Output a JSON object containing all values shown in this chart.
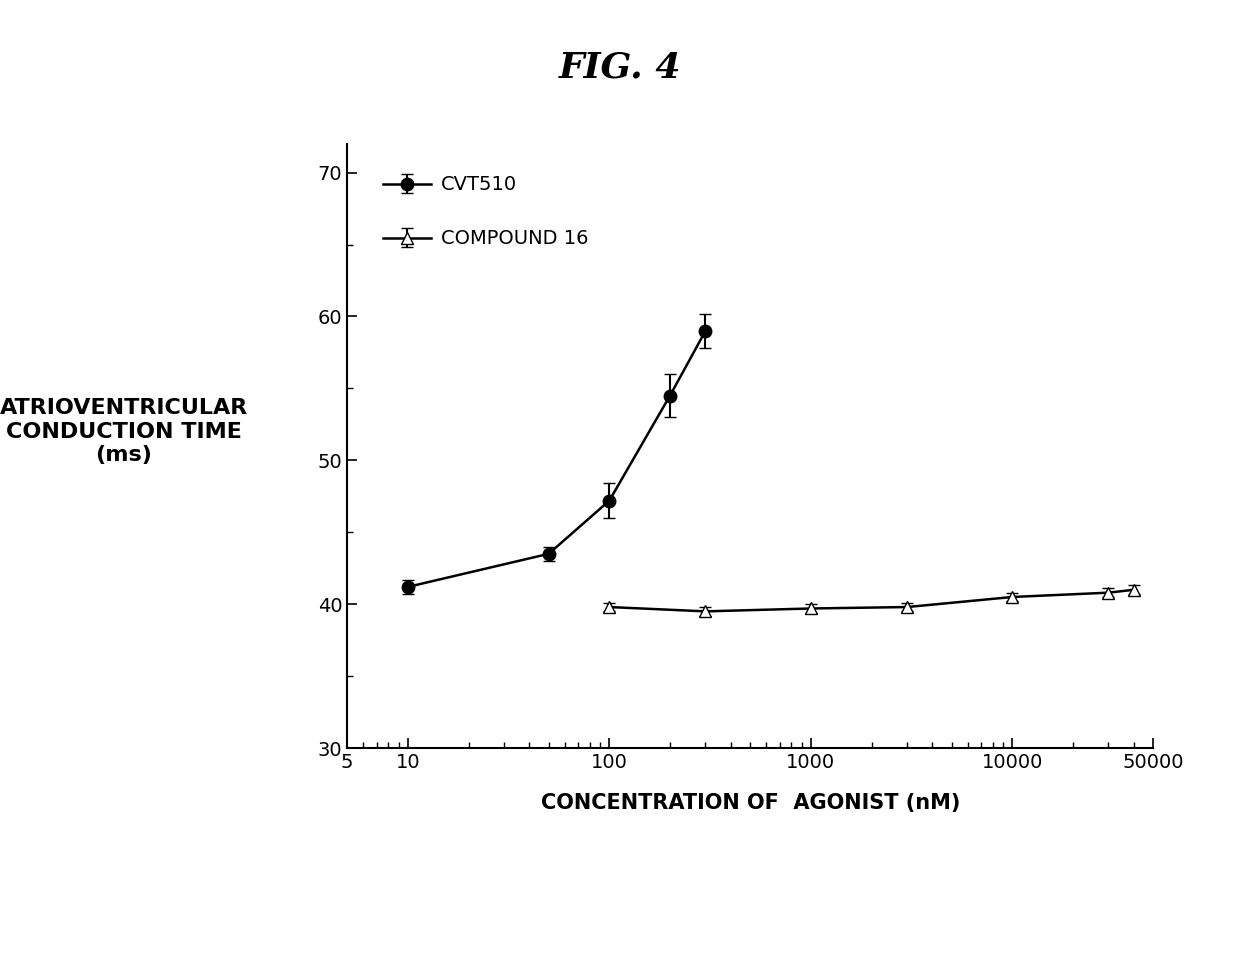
{
  "title": "FIG. 4",
  "xlabel": "CONCENTRATION OF  AGONIST (nM)",
  "ylabel_line1": "ATRIOVENTRICULAR",
  "ylabel_line2": "CONDUCTION TIME",
  "ylabel_line3": "(ms)",
  "cvt510_x": [
    10,
    50,
    100,
    200,
    300
  ],
  "cvt510_y": [
    41.2,
    43.5,
    47.2,
    54.5,
    59.0
  ],
  "cvt510_yerr": [
    0.5,
    0.5,
    1.2,
    1.5,
    1.2
  ],
  "compound16_x": [
    100,
    300,
    1000,
    3000,
    10000,
    30000,
    40000
  ],
  "compound16_y": [
    39.8,
    39.5,
    39.7,
    39.8,
    40.5,
    40.8,
    41.0
  ],
  "compound16_yerr": [
    0.3,
    0.3,
    0.3,
    0.3,
    0.3,
    0.3,
    0.3
  ],
  "ylim": [
    30,
    72
  ],
  "yticks": [
    30,
    40,
    50,
    60,
    70
  ],
  "xlim_log": [
    5,
    50000
  ],
  "xtick_labels": [
    "5",
    "10",
    "100",
    "1000",
    "10000",
    "50000"
  ],
  "xtick_values": [
    5,
    10,
    100,
    1000,
    10000,
    50000
  ],
  "background_color": "#ffffff",
  "line_color": "#000000",
  "title_fontsize": 26,
  "label_fontsize": 15,
  "tick_fontsize": 14,
  "legend_fontsize": 14,
  "ylabel_fontsize": 16
}
